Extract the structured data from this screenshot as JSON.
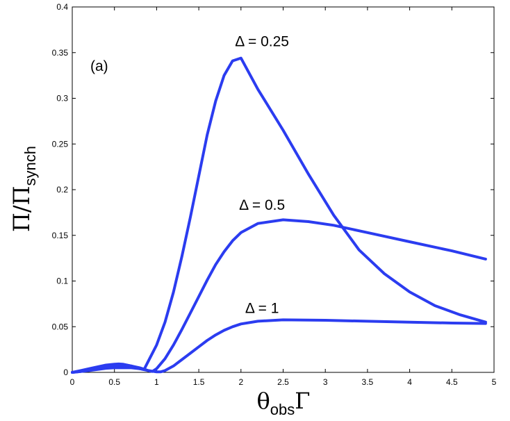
{
  "chart_data": {
    "type": "line",
    "panel_label": "(a)",
    "xlabel": {
      "main": "θ",
      "sub": "obs",
      "tail": "Γ"
    },
    "ylabel": {
      "main": "Π/Π",
      "sub": "synch"
    },
    "xlim": [
      0,
      5
    ],
    "ylim": [
      0,
      0.4
    ],
    "xticks": [
      0,
      0.5,
      1,
      1.5,
      2,
      2.5,
      3,
      3.5,
      4,
      4.5,
      5
    ],
    "yticks": [
      0,
      0.05,
      0.1,
      0.15,
      0.2,
      0.25,
      0.3,
      0.35,
      0.4
    ],
    "xtick_labels": [
      "0",
      "0.5",
      "1",
      "1.5",
      "2",
      "2.5",
      "3",
      "3.5",
      "4",
      "4.5",
      "5"
    ],
    "ytick_labels": [
      "0",
      "0.05",
      "0.1",
      "0.15",
      "0.2",
      "0.25",
      "0.3",
      "0.35",
      "0.4"
    ],
    "grid": false,
    "line_color": "#2b3cf0",
    "series": [
      {
        "annotation": "Δ = 0.25",
        "annotation_at": [
          2.25,
          0.357
        ],
        "x": [
          0,
          0.1,
          0.2,
          0.3,
          0.4,
          0.5,
          0.55,
          0.6,
          0.7,
          0.8,
          0.85,
          0.9,
          1.0,
          1.1,
          1.2,
          1.3,
          1.4,
          1.5,
          1.6,
          1.7,
          1.8,
          1.9,
          2.0,
          2.2,
          2.5,
          2.8,
          3.1,
          3.4,
          3.7,
          4.0,
          4.3,
          4.6,
          4.9
        ],
        "y": [
          0,
          0.002,
          0.004,
          0.006,
          0.008,
          0.009,
          0.0092,
          0.009,
          0.007,
          0.004,
          0.003,
          0.012,
          0.03,
          0.055,
          0.088,
          0.127,
          0.17,
          0.215,
          0.26,
          0.297,
          0.325,
          0.341,
          0.344,
          0.31,
          0.265,
          0.217,
          0.172,
          0.134,
          0.108,
          0.088,
          0.073,
          0.063,
          0.055
        ]
      },
      {
        "annotation": "Δ = 0.5",
        "annotation_at": [
          2.25,
          0.178
        ],
        "x": [
          0,
          0.1,
          0.2,
          0.3,
          0.4,
          0.5,
          0.6,
          0.65,
          0.7,
          0.8,
          0.9,
          0.95,
          1.0,
          1.1,
          1.2,
          1.3,
          1.4,
          1.5,
          1.6,
          1.7,
          1.8,
          1.9,
          2.0,
          2.2,
          2.5,
          2.8,
          3.1,
          3.5,
          4.0,
          4.5,
          4.9
        ],
        "y": [
          0,
          0.001,
          0.003,
          0.005,
          0.0065,
          0.0075,
          0.008,
          0.0078,
          0.007,
          0.005,
          0.002,
          0.001,
          0.004,
          0.015,
          0.03,
          0.047,
          0.065,
          0.083,
          0.101,
          0.118,
          0.132,
          0.144,
          0.153,
          0.163,
          0.167,
          0.165,
          0.161,
          0.153,
          0.143,
          0.133,
          0.124
        ]
      },
      {
        "annotation": "Δ = 1",
        "annotation_at": [
          2.25,
          0.065
        ],
        "x": [
          0,
          0.2,
          0.4,
          0.5,
          0.6,
          0.7,
          0.8,
          0.9,
          1.0,
          1.05,
          1.1,
          1.2,
          1.3,
          1.4,
          1.5,
          1.6,
          1.7,
          1.8,
          1.9,
          2.0,
          2.2,
          2.5,
          3.0,
          3.5,
          4.0,
          4.5,
          4.9
        ],
        "y": [
          0,
          0.002,
          0.0045,
          0.005,
          0.0052,
          0.005,
          0.004,
          0.002,
          0.0005,
          0.0006,
          0.002,
          0.007,
          0.014,
          0.021,
          0.028,
          0.035,
          0.041,
          0.046,
          0.05,
          0.053,
          0.056,
          0.0575,
          0.057,
          0.056,
          0.055,
          0.054,
          0.0535
        ]
      }
    ]
  }
}
